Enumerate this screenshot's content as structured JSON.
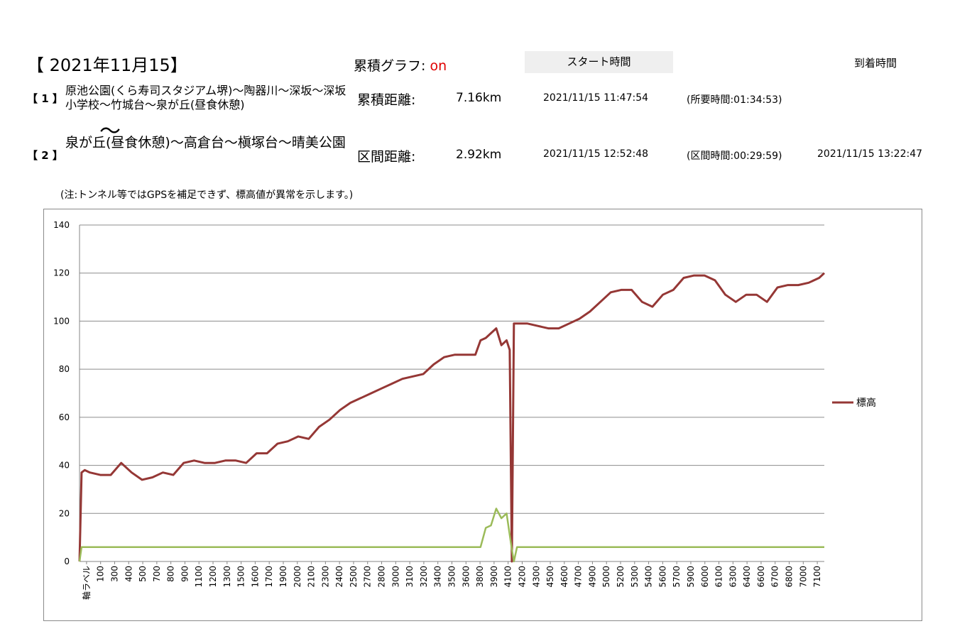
{
  "header": {
    "date_title": "【 2021年11月15】",
    "graph_label": "累積グラフ:",
    "graph_state": "on",
    "start_time_header": "スタート時間",
    "arrival_time_header": "到着時間"
  },
  "segments": [
    {
      "index": "【 1 】",
      "route": "原池公園(くら寿司スタジアム堺)～陶器川～深坂～深坂小学校～竹城台～泉が丘(昼食休憩)",
      "distance_label": "累積距離:",
      "distance": "7.16km",
      "start_time": "2021/11/15 11:47:54",
      "duration": "(所要時間:01:34:53)",
      "arrival_time": ""
    },
    {
      "index": "【 2 】",
      "tilde": "～",
      "route": "泉が丘(昼食休憩)～高倉台～槇塚台～晴美公園",
      "distance_label": "区間距離:",
      "distance": "2.92km",
      "start_time": "2021/11/15 12:52:48",
      "duration": "(区間時間:00:29:59)",
      "arrival_time": "2021/11/15 13:22:47"
    }
  ],
  "note": "(注:トンネル等ではGPSを補足できず、標高値が異常を示します。)",
  "chart_data": {
    "type": "line",
    "ylim": [
      0,
      140
    ],
    "yticks": [
      0,
      20,
      40,
      60,
      80,
      100,
      120,
      140
    ],
    "xlim": [
      0,
      7150
    ],
    "x_tick_labels": [
      "軸ラベル",
      "100",
      "300",
      "400",
      "500",
      "700",
      "800",
      "900",
      "1100",
      "1200",
      "1300",
      "1500",
      "1600",
      "1700",
      "1900",
      "2000",
      "2100",
      "2300",
      "2400",
      "2500",
      "2700",
      "2800",
      "3000",
      "3100",
      "3200",
      "3400",
      "3500",
      "3600",
      "3800",
      "3900",
      "4100",
      "4200",
      "4300",
      "4500",
      "4600",
      "4700",
      "4900",
      "5000",
      "5200",
      "5300",
      "5400",
      "5600",
      "5700",
      "5900",
      "6000",
      "6100",
      "6300",
      "6400",
      "6600",
      "6700",
      "6800",
      "7000",
      "7100"
    ],
    "grid": true,
    "legend_position": "right",
    "series": [
      {
        "name": "標高",
        "color": "#953735",
        "x": [
          0,
          20,
          50,
          100,
          200,
          300,
          400,
          500,
          600,
          700,
          800,
          900,
          1000,
          1100,
          1200,
          1300,
          1400,
          1500,
          1600,
          1700,
          1800,
          1900,
          2000,
          2100,
          2200,
          2300,
          2400,
          2500,
          2600,
          2700,
          2800,
          2900,
          3000,
          3100,
          3200,
          3300,
          3400,
          3500,
          3600,
          3700,
          3800,
          3850,
          3900,
          3950,
          4000,
          4050,
          4100,
          4130,
          4150,
          4170,
          4200,
          4300,
          4400,
          4500,
          4600,
          4700,
          4800,
          4900,
          5000,
          5100,
          5200,
          5300,
          5400,
          5500,
          5600,
          5700,
          5800,
          5900,
          6000,
          6100,
          6200,
          6300,
          6400,
          6500,
          6600,
          6700,
          6800,
          6900,
          7000,
          7100,
          7150
        ],
        "y": [
          0,
          37,
          38,
          37,
          36,
          36,
          41,
          37,
          34,
          35,
          37,
          36,
          41,
          42,
          41,
          41,
          42,
          42,
          41,
          45,
          45,
          49,
          50,
          52,
          51,
          56,
          59,
          63,
          66,
          68,
          70,
          72,
          74,
          76,
          77,
          78,
          82,
          85,
          86,
          86,
          86,
          92,
          93,
          95,
          97,
          90,
          92,
          88,
          0,
          99,
          99,
          99,
          98,
          97,
          97,
          99,
          101,
          104,
          108,
          112,
          113,
          113,
          108,
          106,
          111,
          113,
          118,
          119,
          119,
          117,
          111,
          108,
          111,
          111,
          108,
          114,
          115,
          115,
          116,
          118,
          120
        ]
      },
      {
        "name": "",
        "color": "#9bbb59",
        "x": [
          0,
          20,
          100,
          400,
          800,
          1200,
          1600,
          2000,
          2400,
          2800,
          3200,
          3600,
          3850,
          3900,
          3950,
          4000,
          4050,
          4100,
          4150,
          4170,
          4200,
          4250,
          4400,
          4800,
          5200,
          5600,
          6000,
          6400,
          6800,
          7150
        ],
        "y": [
          0,
          6,
          6,
          6,
          6,
          6,
          6,
          6,
          6,
          6,
          6,
          6,
          6,
          14,
          15,
          22,
          18,
          20,
          5,
          0,
          6,
          6,
          6,
          6,
          6,
          6,
          6,
          6,
          6,
          6
        ]
      }
    ]
  }
}
